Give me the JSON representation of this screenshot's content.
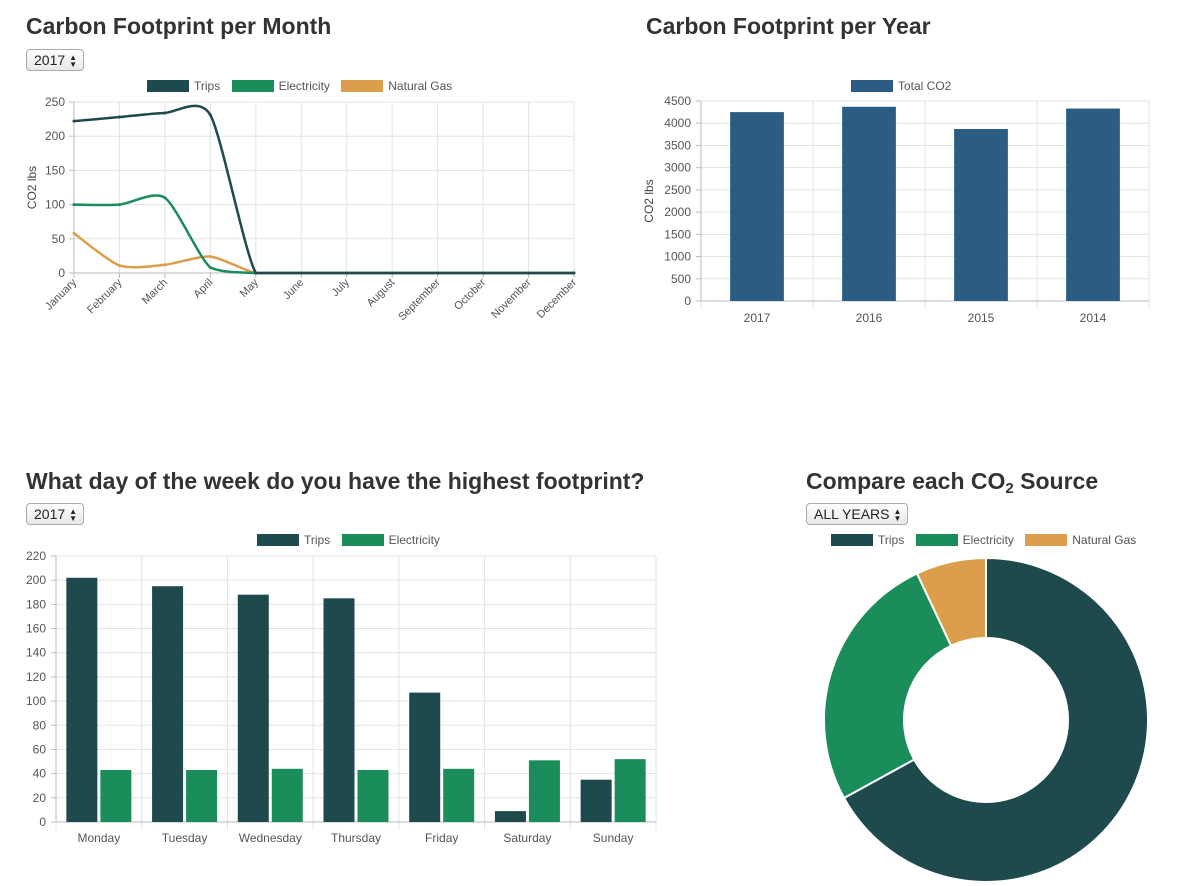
{
  "colors": {
    "trips": "#1e4a4e",
    "electricity": "#1a8d5b",
    "natural_gas": "#dc9e4a",
    "total": "#2b5d84",
    "grid": "#e3e3e3",
    "axis": "#999"
  },
  "panels": {
    "month": {
      "title": "Carbon Footprint per Month",
      "select_value": "2017"
    },
    "year": {
      "title": "Carbon Footprint per Year"
    },
    "week": {
      "title": "What day of the week do you have the highest footprint?",
      "select_value": "2017"
    },
    "source": {
      "title_pre": "Compare each CO",
      "title_sub": "2",
      "title_post": " Source",
      "select_value": "ALL YEARS"
    }
  },
  "chart_data": [
    {
      "type": "line",
      "title": "Carbon Footprint per Month",
      "ylabel": "CO2 lbs",
      "ylim": [
        0,
        250
      ],
      "yticks": [
        0,
        50,
        100,
        150,
        200,
        250
      ],
      "categories": [
        "January",
        "February",
        "March",
        "April",
        "May",
        "June",
        "July",
        "August",
        "September",
        "October",
        "November",
        "December"
      ],
      "series": [
        {
          "name": "Trips",
          "color_key": "trips",
          "values": [
            222,
            228,
            234,
            231,
            0,
            0,
            0,
            0,
            0,
            0,
            0,
            0
          ]
        },
        {
          "name": "Electricity",
          "color_key": "electricity",
          "values": [
            100,
            100,
            110,
            8,
            0,
            0,
            0,
            0,
            0,
            0,
            0,
            0
          ]
        },
        {
          "name": "Natural Gas",
          "color_key": "natural_gas",
          "values": [
            58,
            11,
            12,
            24,
            0,
            0,
            0,
            0,
            0,
            0,
            0,
            0
          ]
        }
      ],
      "grid": true,
      "legend": "top"
    },
    {
      "type": "bar",
      "title": "Carbon Footprint per Year",
      "ylabel": "CO2 lbs",
      "ylim": [
        0,
        4500
      ],
      "yticks": [
        0,
        500,
        1000,
        1500,
        2000,
        2500,
        3000,
        3500,
        4000,
        4500
      ],
      "categories": [
        "2017",
        "2016",
        "2015",
        "2014"
      ],
      "series": [
        {
          "name": "Total CO2",
          "color_key": "total",
          "values": [
            4250,
            4370,
            3870,
            4330
          ]
        }
      ],
      "grid": true,
      "legend": "top"
    },
    {
      "type": "bar",
      "title": "What day of the week do you have the highest footprint?",
      "ylim": [
        0,
        220
      ],
      "yticks": [
        0,
        20,
        40,
        60,
        80,
        100,
        120,
        140,
        160,
        180,
        200,
        220
      ],
      "categories": [
        "Monday",
        "Tuesday",
        "Wednesday",
        "Thursday",
        "Friday",
        "Saturday",
        "Sunday"
      ],
      "series": [
        {
          "name": "Trips",
          "color_key": "trips",
          "values": [
            202,
            195,
            188,
            185,
            107,
            9,
            35
          ]
        },
        {
          "name": "Electricity",
          "color_key": "electricity",
          "values": [
            43,
            43,
            44,
            43,
            44,
            51,
            52
          ]
        }
      ],
      "grid": true,
      "legend": "top"
    },
    {
      "type": "pie",
      "title": "Compare each CO2 Source",
      "categories": [
        "Trips",
        "Electricity",
        "Natural Gas"
      ],
      "series": [
        {
          "values": [
            67,
            26,
            7
          ]
        }
      ],
      "colors_keys": [
        "trips",
        "electricity",
        "natural_gas"
      ],
      "legend": "top"
    }
  ]
}
